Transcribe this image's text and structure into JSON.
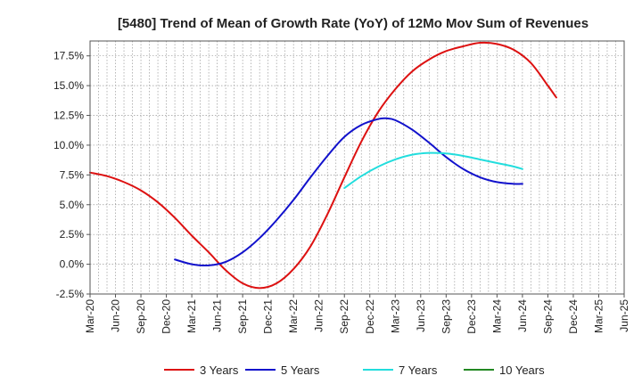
{
  "chart_data": {
    "type": "line",
    "title": "[5480]  Trend of Mean of Growth Rate (YoY) of 12Mo Mov Sum of Revenues",
    "xlabel": "",
    "ylabel": "",
    "ylim": [
      -2.5,
      18.75
    ],
    "yticks": [
      -2.5,
      0.0,
      2.5,
      5.0,
      7.5,
      10.0,
      12.5,
      15.0,
      17.5
    ],
    "ytick_labels": [
      "-2.5%",
      "0.0%",
      "2.5%",
      "5.0%",
      "7.5%",
      "10.0%",
      "12.5%",
      "15.0%",
      "17.5%"
    ],
    "x_range": [
      0,
      63
    ],
    "x_ticks": [
      0,
      3,
      6,
      9,
      12,
      15,
      18,
      21,
      24,
      27,
      30,
      33,
      36,
      39,
      42,
      45,
      48,
      51,
      54,
      57,
      60,
      63
    ],
    "x_tick_labels": [
      "Mar-20",
      "Jun-20",
      "Sep-20",
      "Dec-20",
      "Mar-21",
      "Jun-21",
      "Sep-21",
      "Dec-21",
      "Mar-22",
      "Jun-22",
      "Sep-22",
      "Dec-22",
      "Mar-23",
      "Jun-23",
      "Sep-23",
      "Dec-23",
      "Mar-24",
      "Jun-24",
      "Sep-24",
      "Dec-24",
      "Mar-25",
      "Jun-25"
    ],
    "grid": true,
    "legend_position": "bottom",
    "series": [
      {
        "name": "3 Years",
        "color": "#dd1111",
        "points": [
          [
            0,
            7.7
          ],
          [
            2,
            7.4
          ],
          [
            4,
            6.9
          ],
          [
            6,
            6.2
          ],
          [
            8,
            5.2
          ],
          [
            10,
            3.9
          ],
          [
            12,
            2.4
          ],
          [
            14,
            1.0
          ],
          [
            16,
            -0.5
          ],
          [
            18,
            -1.6
          ],
          [
            20,
            -2.0
          ],
          [
            22,
            -1.6
          ],
          [
            24,
            -0.4
          ],
          [
            26,
            1.5
          ],
          [
            28,
            4.2
          ],
          [
            30,
            7.3
          ],
          [
            32,
            10.3
          ],
          [
            34,
            12.8
          ],
          [
            36,
            14.7
          ],
          [
            38,
            16.2
          ],
          [
            40,
            17.2
          ],
          [
            42,
            17.9
          ],
          [
            44,
            18.3
          ],
          [
            46,
            18.6
          ],
          [
            48,
            18.5
          ],
          [
            50,
            18.0
          ],
          [
            52,
            16.9
          ],
          [
            54,
            15.0
          ],
          [
            55,
            14.0
          ]
        ]
      },
      {
        "name": "5 Years",
        "color": "#1111cc",
        "points": [
          [
            10,
            0.4
          ],
          [
            12,
            0.0
          ],
          [
            14,
            -0.1
          ],
          [
            16,
            0.2
          ],
          [
            18,
            1.0
          ],
          [
            20,
            2.2
          ],
          [
            22,
            3.7
          ],
          [
            24,
            5.4
          ],
          [
            26,
            7.3
          ],
          [
            28,
            9.1
          ],
          [
            30,
            10.7
          ],
          [
            32,
            11.7
          ],
          [
            34,
            12.2
          ],
          [
            35,
            12.25
          ],
          [
            36,
            12.1
          ],
          [
            38,
            11.3
          ],
          [
            40,
            10.2
          ],
          [
            42,
            9.0
          ],
          [
            44,
            8.0
          ],
          [
            46,
            7.3
          ],
          [
            48,
            6.9
          ],
          [
            50,
            6.75
          ],
          [
            51,
            6.75
          ]
        ]
      },
      {
        "name": "7 Years",
        "color": "#22dddd",
        "points": [
          [
            30,
            6.4
          ],
          [
            32,
            7.4
          ],
          [
            34,
            8.2
          ],
          [
            36,
            8.8
          ],
          [
            38,
            9.2
          ],
          [
            40,
            9.35
          ],
          [
            42,
            9.3
          ],
          [
            44,
            9.1
          ],
          [
            46,
            8.8
          ],
          [
            48,
            8.5
          ],
          [
            50,
            8.2
          ],
          [
            51,
            8.0
          ]
        ]
      },
      {
        "name": "10 Years",
        "color": "#228822",
        "points": []
      }
    ]
  }
}
